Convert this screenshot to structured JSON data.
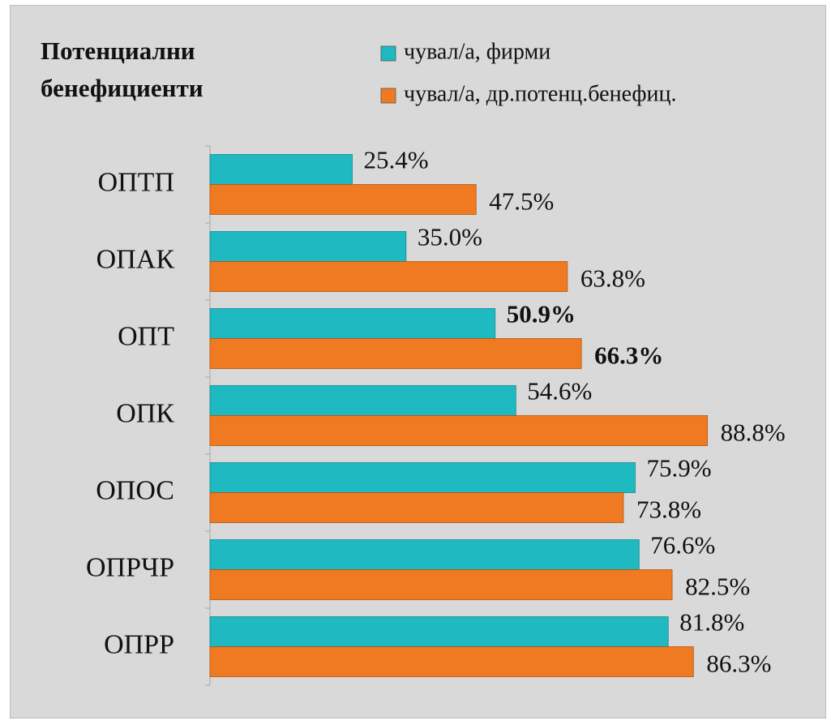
{
  "chart_data": {
    "type": "barh",
    "title": "Потенциални бенефициенти",
    "categories": [
      "ОПТП",
      "ОПАК",
      "ОПТ",
      "ОПК",
      "ОПОС",
      "ОПРЧР",
      "ОПРР"
    ],
    "series": [
      {
        "name": "чувал/а, фирми",
        "color": "#1fb9c2",
        "values": [
          25.4,
          35.0,
          50.9,
          54.6,
          75.9,
          76.6,
          81.8
        ],
        "value_labels": [
          "25.4%",
          "35.0%",
          "50.9%",
          "54.6%",
          "75.9%",
          "76.6%",
          "81.8%"
        ]
      },
      {
        "name": "чувал/а, др.потенц.бенефиц.",
        "color": "#f07a22",
        "values": [
          47.5,
          63.8,
          66.3,
          88.8,
          73.8,
          82.5,
          86.3
        ],
        "value_labels": [
          "47.5%",
          "63.8%",
          "66.3%",
          "88.8%",
          "73.8%",
          "82.5%",
          "86.3%"
        ]
      }
    ],
    "highlight": "ОПТ",
    "xlim": [
      0,
      100
    ]
  }
}
